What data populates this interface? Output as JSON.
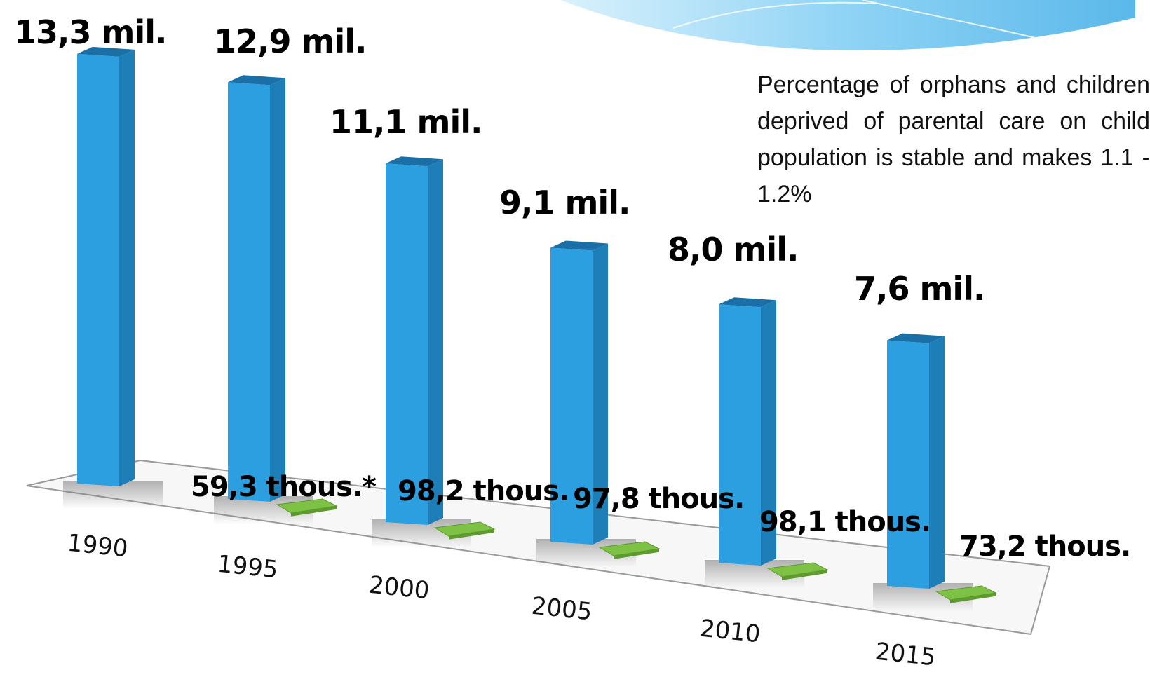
{
  "chart_data": {
    "type": "bar",
    "categories": [
      "1990",
      "1995",
      "2000",
      "2005",
      "2010",
      "2015"
    ],
    "series": [
      {
        "values": [
          13.3,
          12.9,
          11.1,
          9.1,
          8.0,
          7.6
        ],
        "labels": [
          "13,3 mil.",
          "12,9 mil.",
          "11,1 mil.",
          "9,1 mil.",
          "8,0 mil.",
          "7,6 mil."
        ],
        "color": "#2b9fe0"
      },
      {
        "values": [
          null,
          59.3,
          98.2,
          97.8,
          98.1,
          73.2
        ],
        "labels": [
          "",
          "59,3 thous.*",
          "98,2 thous.",
          "97,8 thous.",
          "98,1 thous.",
          "73,2 thous."
        ],
        "color": "#7dc244"
      }
    ],
    "annotation": "Percentage of orphans and children deprived of parental care on child population is stable and makes 1.1 - 1.2%",
    "title": "",
    "xlabel": "",
    "ylabel": "",
    "grid": false,
    "legend": "none"
  },
  "colors": {
    "bar_front": "#2b9fe0",
    "bar_side": "#1e7fb8",
    "bar_top": "#1a6fa6",
    "small_bar": "#7dc244",
    "floor": "#f4f4f4",
    "wave": "#8fd3f5"
  }
}
